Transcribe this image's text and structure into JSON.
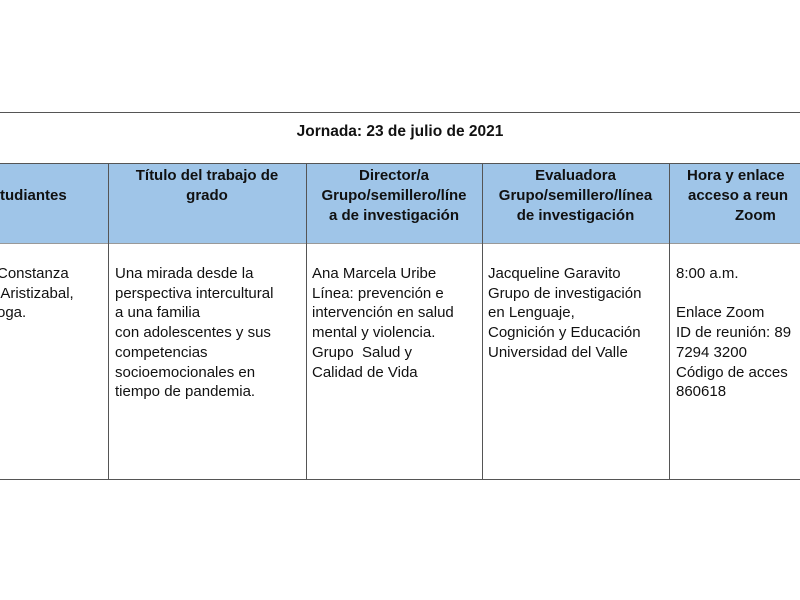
{
  "jornada_title": "Jornada: 23 de julio de 2021",
  "header_color": "#9fc5e8",
  "headers": {
    "estudiantes": [
      "",
      "",
      "tudiantes"
    ],
    "titulo": [
      "Título del trabajo de",
      "grado"
    ],
    "director": [
      "Director/a",
      "Grupo/semillero/líne",
      "a de investigación"
    ],
    "evaluadora": [
      "Evaluadora",
      "Grupo/semillero/línea",
      "de investigación"
    ],
    "hora": [
      "Hora y enlace",
      "acceso a reun",
      "Zoom"
    ]
  },
  "row": {
    "estudiantes": [
      "Constanza",
      " Aristizabal,",
      "oga."
    ],
    "titulo": [
      "Una mirada desde la",
      "perspectiva intercultural",
      "a una familia",
      "con adolescentes y sus",
      "competencias",
      "socioemocionales en",
      "tiempo de pandemia."
    ],
    "director": [
      "Ana Marcela Uribe",
      "Línea: prevención e",
      "intervención en salud",
      "mental y violencia.",
      "Grupo  Salud y",
      "Calidad de Vida"
    ],
    "evaluadora": [
      "Jacqueline Garavito",
      "Grupo de investigación",
      "en Lenguaje,",
      "Cognición y Educación",
      "Universidad del Valle"
    ],
    "hora": [
      "8:00 a.m.",
      "",
      "Enlace Zoom",
      "ID de reunión: 89",
      "7294 3200",
      "Código de acces",
      "860618"
    ]
  }
}
